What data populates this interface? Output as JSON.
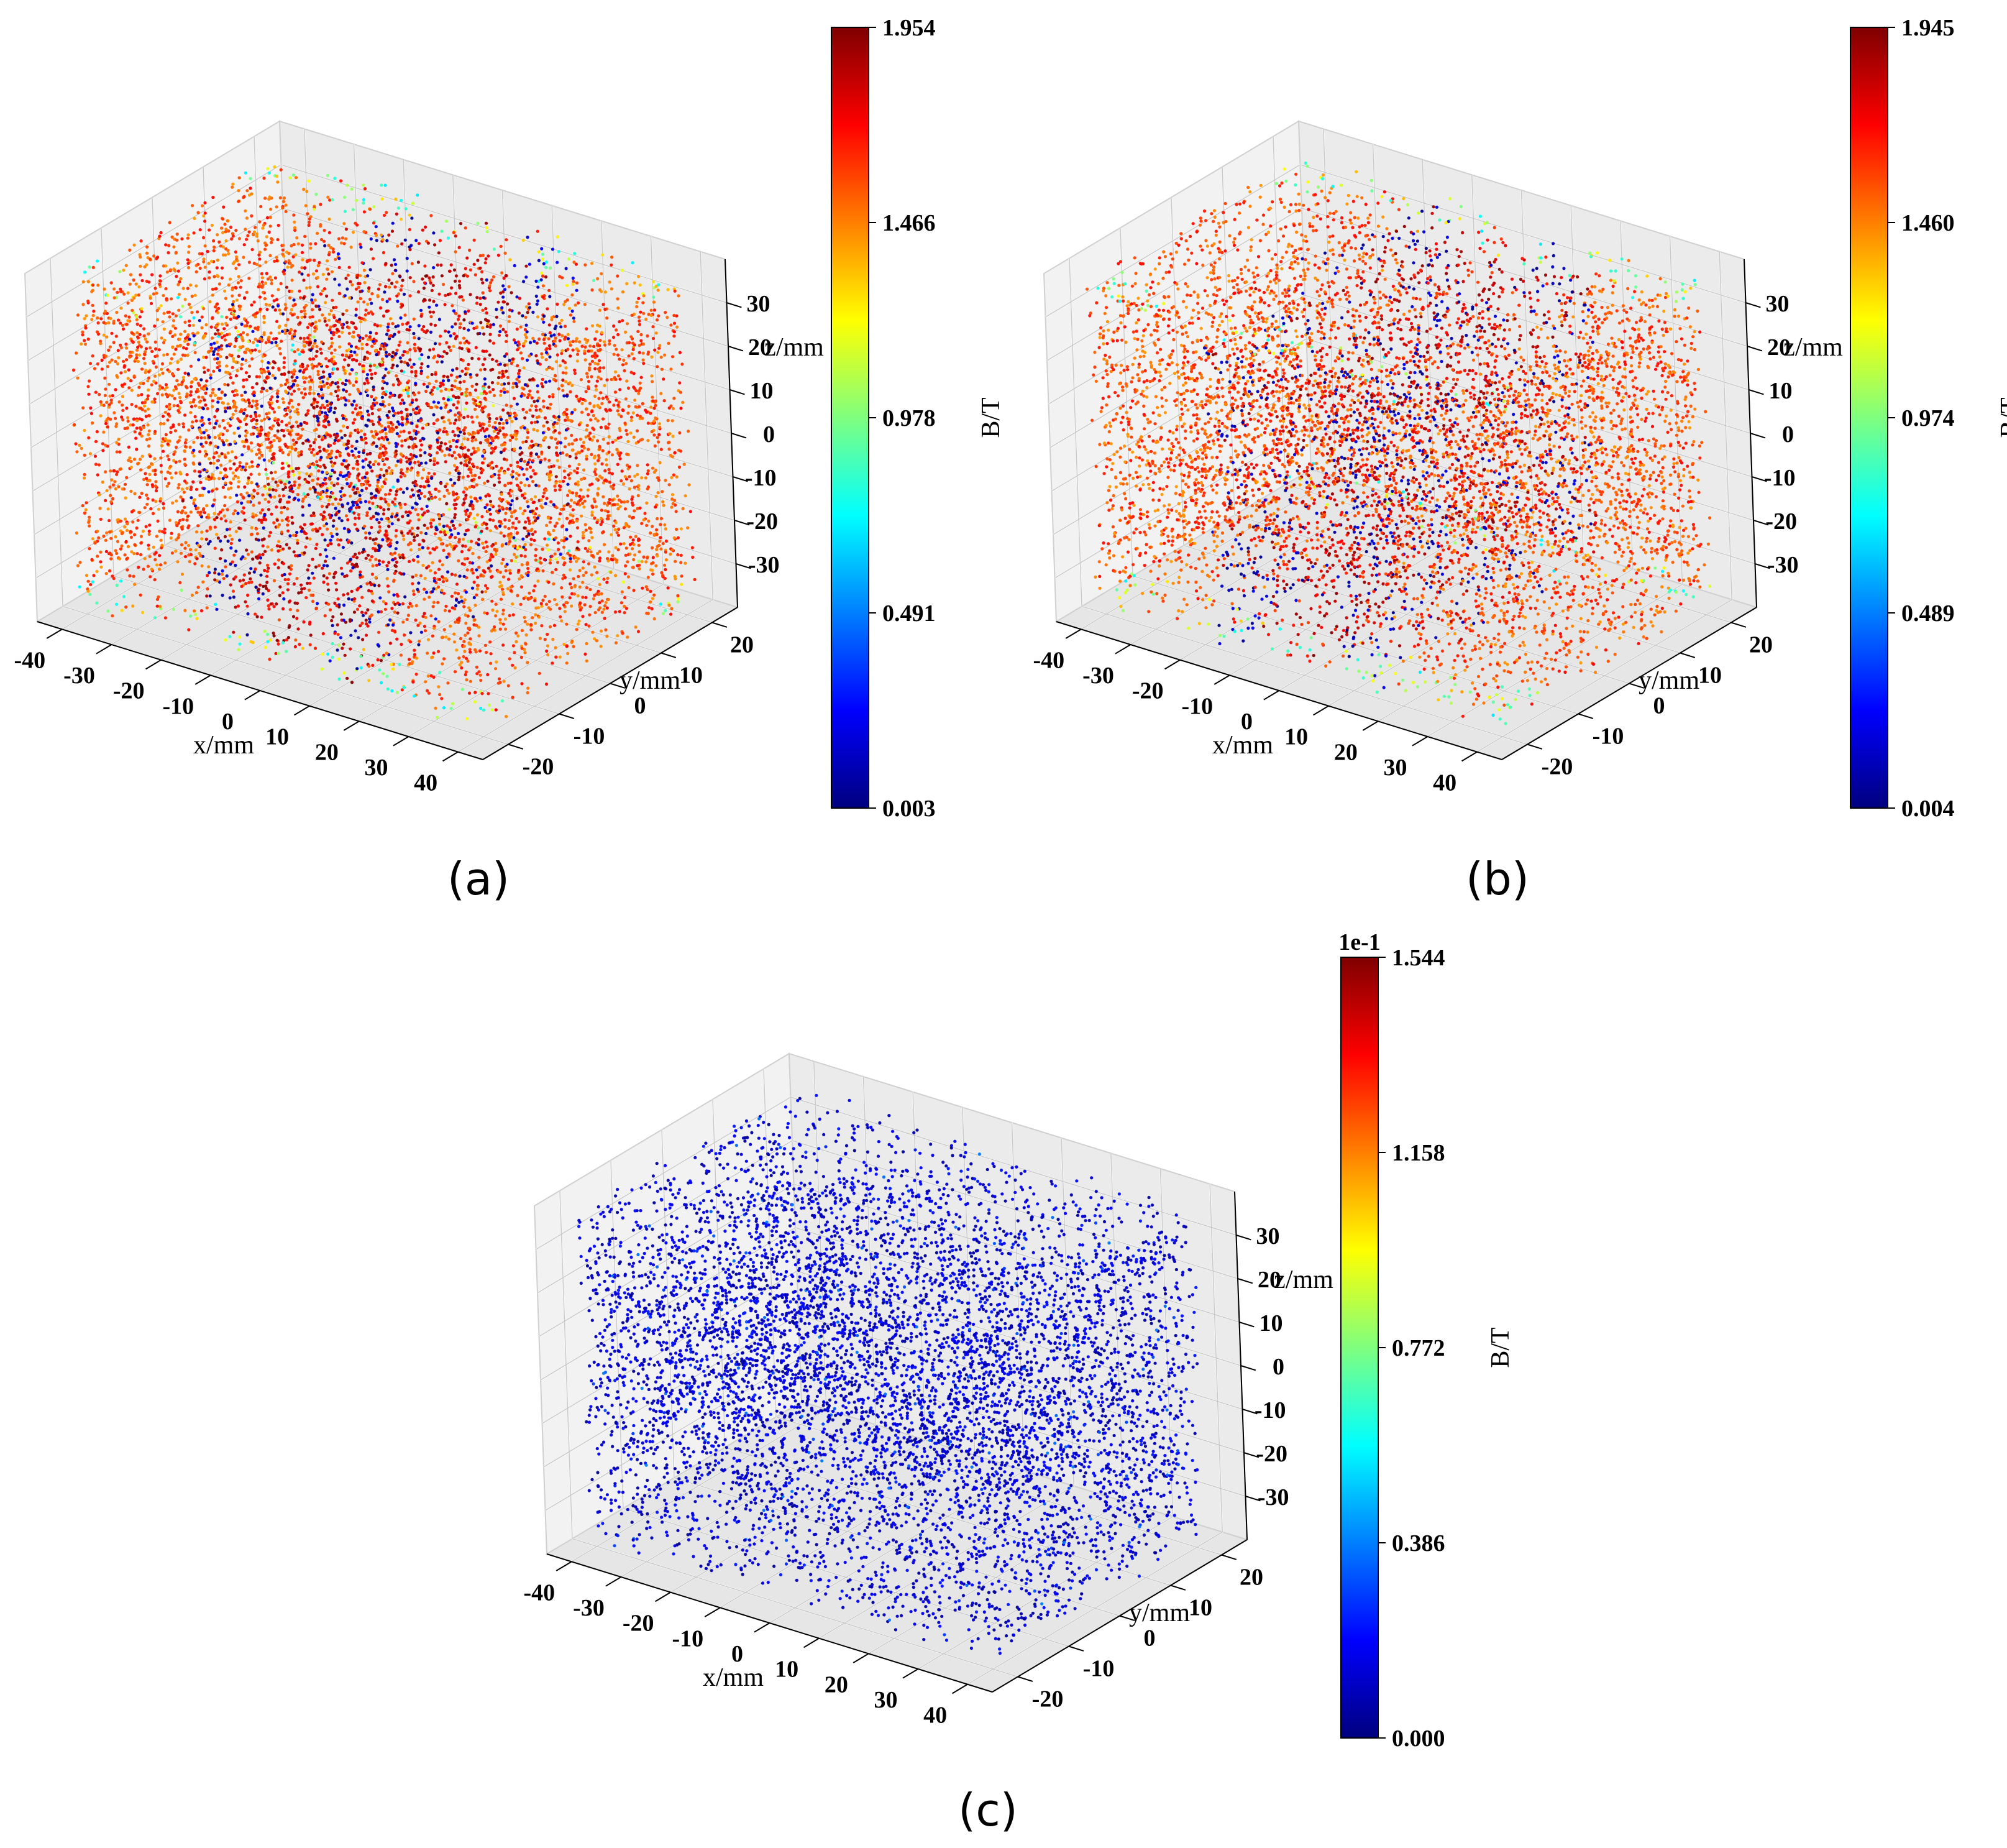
{
  "figure": {
    "x_ticks": [
      "-40",
      "-30",
      "-20",
      "-10",
      "0",
      "10",
      "20",
      "30",
      "40"
    ],
    "y_ticks": [
      "-20",
      "-10",
      "0",
      "10",
      "20"
    ],
    "z_ticks": [
      "-30",
      "-20",
      "-10",
      "0",
      "10",
      "20",
      "30"
    ],
    "colormap": [
      "#00007f",
      "#0000ff",
      "#007fff",
      "#00ffff",
      "#7fff7f",
      "#ffff00",
      "#ff7f00",
      "#ff0000",
      "#7f0000"
    ]
  },
  "chart_data": [
    {
      "type": "scatter",
      "projection": "3d",
      "caption": "(a)",
      "xlabel": "x/mm",
      "ylabel": "y/mm",
      "zlabel": "z/mm",
      "xlim": [
        -45,
        45
      ],
      "ylim": [
        -25,
        25
      ],
      "zlim": [
        -40,
        40
      ],
      "colorbar": {
        "label": "B/T",
        "ticks": [
          "0.003",
          "0.491",
          "0.978",
          "1.466",
          "1.954"
        ],
        "min": 0.003,
        "max": 1.954,
        "offset_text": ""
      },
      "grid": true,
      "seed": 7,
      "mode": "full"
    },
    {
      "type": "scatter",
      "projection": "3d",
      "caption": "(b)",
      "xlabel": "x/mm",
      "ylabel": "y/mm",
      "zlabel": "z/mm",
      "xlim": [
        -45,
        45
      ],
      "ylim": [
        -25,
        25
      ],
      "zlim": [
        -40,
        40
      ],
      "colorbar": {
        "label": "B/T",
        "ticks": [
          "0.004",
          "0.489",
          "0.974",
          "1.460",
          "1.945"
        ],
        "min": 0.004,
        "max": 1.945,
        "offset_text": ""
      },
      "grid": true,
      "seed": 19,
      "mode": "full"
    },
    {
      "type": "scatter",
      "projection": "3d",
      "caption": "(c)",
      "xlabel": "x/mm",
      "ylabel": "y/mm",
      "zlabel": "z/mm",
      "xlim": [
        -45,
        45
      ],
      "ylim": [
        -25,
        25
      ],
      "zlim": [
        -40,
        40
      ],
      "colorbar": {
        "label": "B/T",
        "ticks": [
          "0.000",
          "0.386",
          "0.772",
          "1.158",
          "1.544"
        ],
        "min": 0.0,
        "max": 1.544,
        "offset_text": "1e-1"
      },
      "grid": true,
      "seed": 31,
      "mode": "error"
    }
  ]
}
